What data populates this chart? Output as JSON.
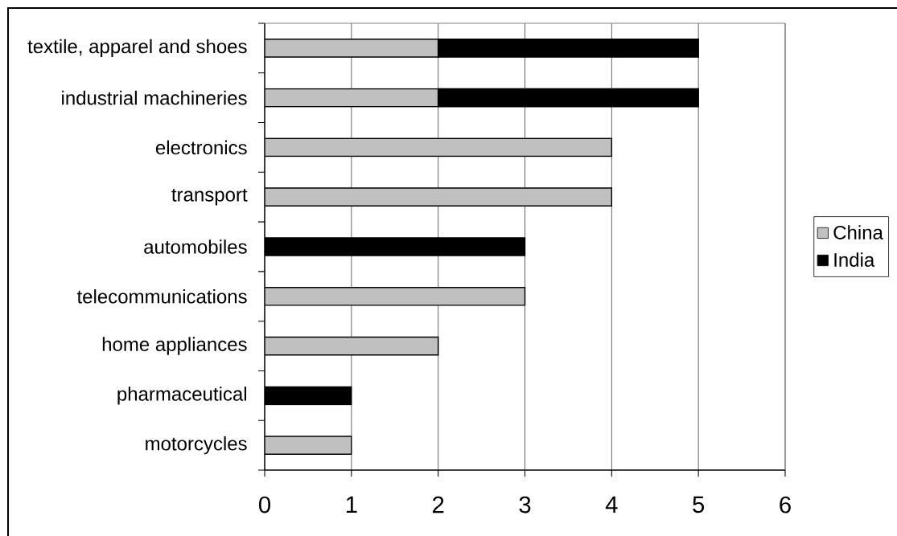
{
  "chart_data": {
    "type": "bar",
    "orientation": "horizontal",
    "stacked": true,
    "categories": [
      "textile, apparel and shoes",
      "industrial machineries",
      "electronics",
      "transport",
      "automobiles",
      "telecommunications",
      "home appliances",
      "pharmaceutical",
      "motorcycles"
    ],
    "series": [
      {
        "name": "China",
        "color": "#c0c0c0",
        "values": [
          2,
          2,
          4,
          4,
          null,
          3,
          2,
          null,
          1
        ]
      },
      {
        "name": "India",
        "color": "#000000",
        "values": [
          3,
          3,
          null,
          null,
          3,
          null,
          null,
          1,
          null
        ]
      }
    ],
    "xlim": [
      0,
      6
    ],
    "xticks": [
      0,
      1,
      2,
      3,
      4,
      5,
      6
    ],
    "grid": "x",
    "legend": "right"
  }
}
